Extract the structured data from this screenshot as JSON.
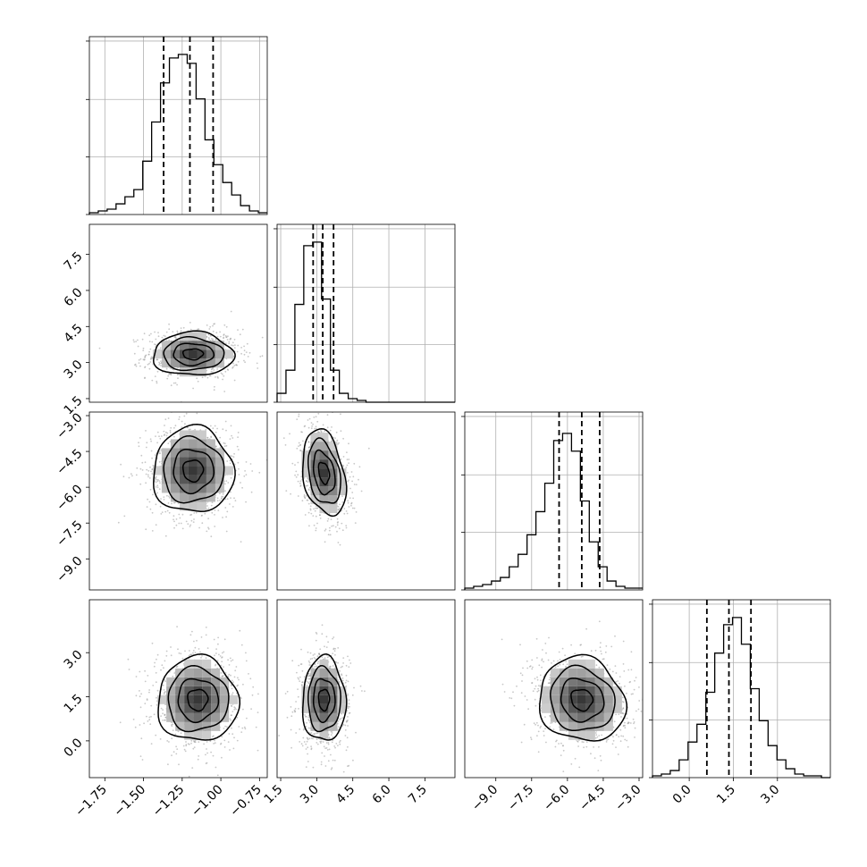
{
  "colors": {
    "ink": "#000000",
    "grid": "#b0b0b0",
    "background": "#ffffff"
  },
  "chart_data": {
    "type": "corner",
    "title": "",
    "parameters": [
      {
        "range": [
          -1.85,
          -0.7
        ],
        "ticks": [
          -1.75,
          -1.5,
          -1.25,
          -1.0,
          -0.75
        ],
        "tick_labels": [
          "−1.75",
          "−1.50",
          "−1.25",
          "−1.00",
          "−0.75"
        ],
        "quantiles": [
          -1.37,
          -1.2,
          -1.05
        ],
        "mean": -1.2,
        "sd": 0.13
      },
      {
        "range": [
          1.35,
          8.75
        ],
        "ticks": [
          1.5,
          3.0,
          4.5,
          6.0,
          7.5
        ],
        "tick_labels": [
          "1.5",
          "3.0",
          "4.5",
          "6.0",
          "7.5"
        ],
        "quantiles": [
          2.85,
          3.25,
          3.7
        ],
        "mean": 3.25,
        "sd": 0.45
      },
      {
        "range": [
          -10.3,
          -2.85
        ],
        "ticks": [
          -9.0,
          -7.5,
          -6.0,
          -4.5,
          -3.0
        ],
        "tick_labels": [
          "−9.0",
          "−7.5",
          "−6.0",
          "−4.5",
          "−3.0"
        ],
        "quantiles": [
          -6.35,
          -5.4,
          -4.65
        ],
        "mean": -5.4,
        "sd": 0.9
      },
      {
        "range": [
          -1.25,
          4.8
        ],
        "ticks": [
          0.0,
          1.5,
          3.0
        ],
        "tick_labels": [
          "0.0",
          "1.5",
          "3.0"
        ],
        "quantiles": [
          0.6,
          1.35,
          2.1
        ],
        "mean": 1.35,
        "sd": 0.72
      }
    ],
    "histograms": [
      {
        "param": 0,
        "bins": 20,
        "counts": [
          0.01,
          0.02,
          0.03,
          0.06,
          0.1,
          0.14,
          0.3,
          0.52,
          0.74,
          0.88,
          0.9,
          0.85,
          0.65,
          0.42,
          0.28,
          0.18,
          0.11,
          0.05,
          0.02,
          0.01
        ]
      },
      {
        "param": 1,
        "bins": 20,
        "counts": [
          0.05,
          0.18,
          0.55,
          0.88,
          0.9,
          0.58,
          0.18,
          0.05,
          0.02,
          0.01,
          0.0,
          0.0,
          0.0,
          0.0,
          0.0,
          0.0,
          0.0,
          0.0,
          0.0,
          0.0
        ]
      },
      {
        "param": 2,
        "bins": 20,
        "counts": [
          0.01,
          0.02,
          0.03,
          0.05,
          0.07,
          0.13,
          0.2,
          0.31,
          0.44,
          0.6,
          0.84,
          0.88,
          0.78,
          0.5,
          0.27,
          0.13,
          0.05,
          0.02,
          0.01,
          0.01
        ]
      },
      {
        "param": 3,
        "bins": 20,
        "counts": [
          0.01,
          0.02,
          0.04,
          0.1,
          0.2,
          0.3,
          0.48,
          0.7,
          0.86,
          0.9,
          0.75,
          0.5,
          0.32,
          0.18,
          0.1,
          0.05,
          0.02,
          0.01,
          0.01,
          0.0
        ]
      }
    ],
    "pairs": [
      {
        "row": 1,
        "col": 0,
        "center": [
          -1.18,
          3.35
        ],
        "spread": [
          0.13,
          0.45
        ],
        "rho": 0.0
      },
      {
        "row": 2,
        "col": 0,
        "center": [
          -1.18,
          -5.3
        ],
        "spread": [
          0.13,
          0.9
        ],
        "rho": 0.0
      },
      {
        "row": 2,
        "col": 1,
        "center": [
          3.3,
          -5.4
        ],
        "spread": [
          0.45,
          0.9
        ],
        "rho": -0.3
      },
      {
        "row": 3,
        "col": 0,
        "center": [
          -1.15,
          1.4
        ],
        "spread": [
          0.13,
          0.72
        ],
        "rho": 0.0
      },
      {
        "row": 3,
        "col": 1,
        "center": [
          3.3,
          1.4
        ],
        "spread": [
          0.45,
          0.72
        ],
        "rho": 0.0
      },
      {
        "row": 3,
        "col": 2,
        "center": [
          -5.4,
          1.4
        ],
        "spread": [
          0.9,
          0.72
        ],
        "rho": -0.1
      }
    ],
    "contour_levels_sigma": [
      0.5,
      1.0,
      1.5,
      2.0
    ],
    "grid": true,
    "legend": "none"
  }
}
